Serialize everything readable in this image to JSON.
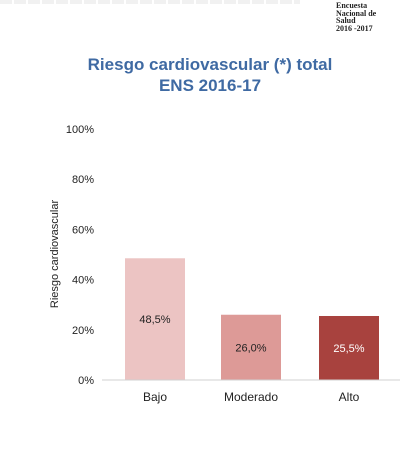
{
  "logo": {
    "lines": [
      "Encuesta",
      "Nacional de",
      "Salud",
      "2016 -2017"
    ]
  },
  "chart_data": {
    "type": "bar",
    "title_lines": [
      "Riesgo cardiovascular (*) total",
      "ENS 2016-17"
    ],
    "xlabel": "",
    "ylabel": "Riesgo cardiovascular",
    "categories": [
      "Bajo",
      "Moderado",
      "Alto"
    ],
    "values": [
      48.5,
      26.0,
      25.5
    ],
    "value_labels": [
      "48,5%",
      "26,0%",
      "25,5%"
    ],
    "bar_colors": [
      "#ecc4c3",
      "#dd9a97",
      "#a8423e"
    ],
    "label_colors": [
      "#222222",
      "#222222",
      "#ffffff"
    ],
    "ylim": [
      0,
      100
    ],
    "yticks": [
      0,
      20,
      40,
      60,
      80,
      100
    ],
    "ytick_labels": [
      "0%",
      "20%",
      "40%",
      "60%",
      "80%",
      "100%"
    ],
    "grid": false,
    "legend": "none"
  }
}
